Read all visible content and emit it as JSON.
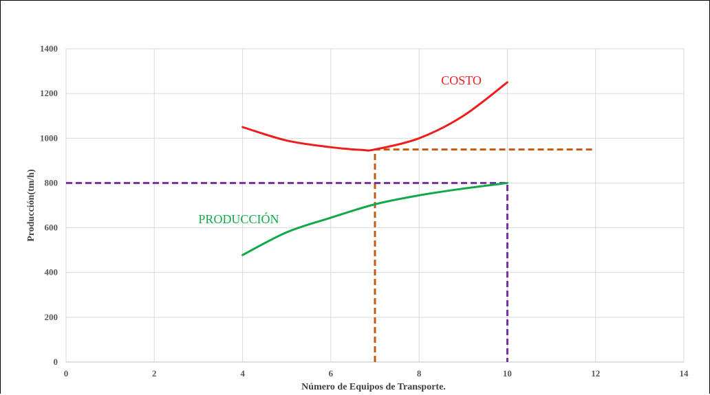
{
  "chart_data": {
    "type": "line",
    "title": "",
    "xlabel": "Número de Equipos de Transporte.",
    "ylabel": "Producción(tm/h)",
    "xlim": [
      0,
      14
    ],
    "ylim": [
      0,
      1400
    ],
    "x_ticks": [
      0,
      2,
      4,
      6,
      8,
      10,
      12,
      14
    ],
    "y_ticks": [
      0,
      200,
      400,
      600,
      800,
      1000,
      1200,
      1400
    ],
    "grid": true,
    "series": [
      {
        "name": "COSTO",
        "color": "#ee1c1c",
        "label_at": [
          8.5,
          1240
        ],
        "points": [
          [
            4,
            1050
          ],
          [
            5,
            990
          ],
          [
            6,
            960
          ],
          [
            6.7,
            948
          ],
          [
            7,
            950
          ],
          [
            8,
            1000
          ],
          [
            9,
            1100
          ],
          [
            10,
            1250
          ]
        ]
      },
      {
        "name": "PRODUCCIÓN",
        "color": "#12a84a",
        "label_at": [
          3.0,
          620
        ],
        "points": [
          [
            4,
            478
          ],
          [
            5,
            580
          ],
          [
            6,
            645
          ],
          [
            7,
            705
          ],
          [
            8,
            745
          ],
          [
            9,
            775
          ],
          [
            10,
            800
          ]
        ]
      }
    ],
    "reference_lines": [
      {
        "color": "#c45911",
        "points": [
          [
            7,
            0
          ],
          [
            7,
            950
          ],
          [
            12,
            950
          ]
        ]
      },
      {
        "color": "#7030a0",
        "points": [
          [
            0,
            800
          ],
          [
            10,
            800
          ],
          [
            10,
            0
          ]
        ]
      }
    ]
  }
}
